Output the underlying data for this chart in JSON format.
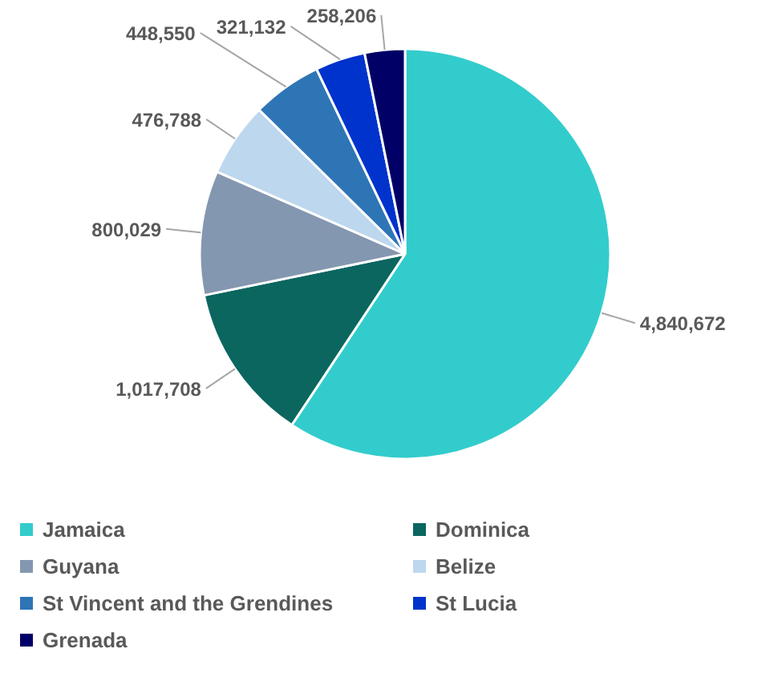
{
  "chart_data": {
    "type": "pie",
    "categories": [
      "Jamaica",
      "Dominica",
      "Guyana",
      "Belize",
      "St Vincent and the Grendines",
      "St Lucia",
      "Grenada"
    ],
    "values": [
      4840672,
      1017708,
      800029,
      476788,
      448550,
      321132,
      258206
    ],
    "colors": [
      "#33cccc",
      "#0b6660",
      "#8497b0",
      "#bdd7ee",
      "#2e75b6",
      "#0033cc",
      "#000066"
    ],
    "value_labels": [
      "4,840,672",
      "1,017,708",
      "800,029",
      "476,788",
      "448,550",
      "321,132",
      "258,206"
    ],
    "legend": "bottom"
  }
}
